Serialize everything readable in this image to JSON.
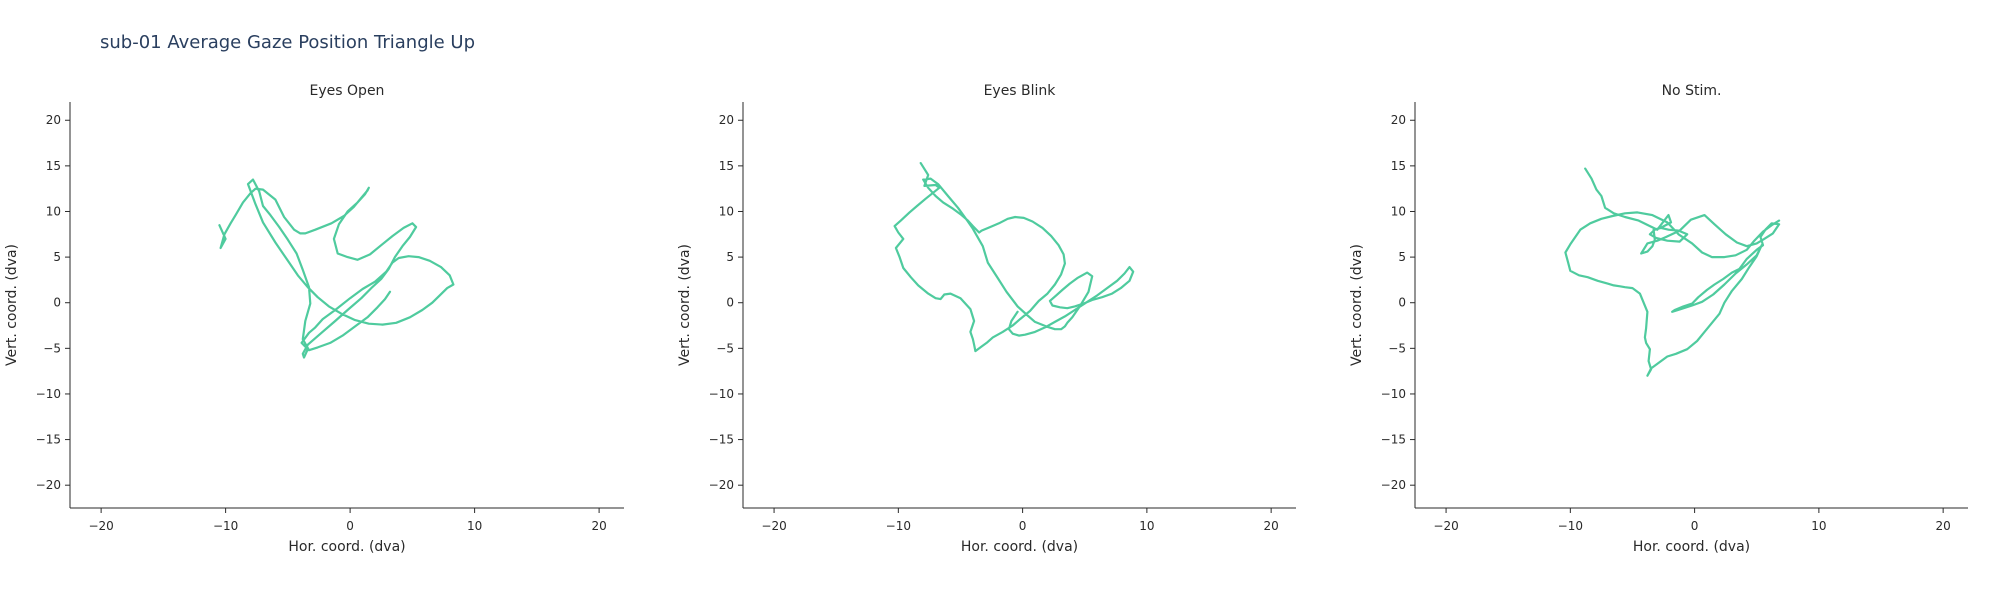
{
  "title": "sub-01 Average Gaze Position Triangle Up",
  "trace_color": "#4fcb9e",
  "chart_data": [
    {
      "type": "line",
      "title": "Eyes Open",
      "xlabel": "Hor. coord. (dva)",
      "ylabel": "Vert. coord. (dva)",
      "xlim": [
        -22.5,
        22
      ],
      "ylim": [
        -22.5,
        22
      ],
      "xticks": [
        -20,
        -10,
        0,
        10,
        20
      ],
      "yticks": [
        20,
        15,
        10,
        5,
        0,
        -5,
        -10,
        -15,
        -20
      ],
      "xtick_labels": [
        "−20",
        "−10",
        "0",
        "10",
        "20"
      ],
      "ytick_labels": [
        "20",
        "15",
        "10",
        "5",
        "0",
        "−5",
        "−10",
        "−15",
        "−20"
      ],
      "grid": false,
      "series": [
        {
          "x": [
            -10.5,
            -10.0,
            -10.4,
            -10.1,
            -9.6,
            -9.2,
            -8.6,
            -8.0,
            -7.6,
            -7.0,
            -6.0,
            -5.3,
            -4.5,
            -4.0,
            -3.6,
            -2.8,
            -1.5,
            -0.5,
            0.3,
            0.9,
            1.4,
            1.5,
            1.2,
            0.6,
            -0.2,
            -0.9,
            -1.3,
            -1.0,
            -0.2,
            0.6,
            1.6,
            2.5,
            3.4,
            4.3,
            5.0,
            5.3,
            4.8,
            4.2,
            3.6,
            3.1,
            2.5,
            1.7,
            0.9,
            -0.2,
            -1.2,
            -2.3,
            -3.4,
            -3.8,
            -3.7,
            -3.4,
            -3.9,
            -3.3,
            -2.8,
            -2.2,
            -1.2,
            0.0,
            1.0,
            2.0,
            2.9,
            3.4,
            3.9,
            4.7,
            5.5,
            6.4,
            7.3,
            8.0,
            8.3,
            7.8,
            7.2,
            6.6,
            5.8,
            4.8,
            3.7,
            2.6,
            1.5,
            0.4,
            -0.7,
            -1.7,
            -2.6,
            -3.4,
            -4.2,
            -5.0,
            -6.0,
            -7.0,
            -7.6,
            -8.2,
            -7.8,
            -7.3,
            -7.0,
            -6.4,
            -5.7,
            -5.0,
            -4.3,
            -3.8,
            -3.3,
            -3.2,
            -3.6,
            -3.8,
            -3.3,
            -2.6,
            -1.6,
            -0.6,
            0.4,
            1.4,
            2.2,
            2.8,
            3.2
          ],
          "y": [
            8.5,
            7.0,
            6.0,
            7.5,
            8.7,
            9.6,
            11.0,
            12.0,
            12.5,
            12.4,
            11.3,
            9.4,
            8.0,
            7.6,
            7.6,
            8.0,
            8.7,
            9.5,
            10.5,
            11.5,
            12.3,
            12.6,
            11.9,
            11.0,
            10.0,
            8.6,
            7.0,
            5.4,
            5.0,
            4.7,
            5.3,
            6.3,
            7.3,
            8.2,
            8.7,
            8.3,
            7.2,
            6.2,
            5.0,
            3.7,
            2.6,
            1.6,
            0.5,
            -0.8,
            -2.0,
            -3.3,
            -4.6,
            -5.6,
            -6.0,
            -5.1,
            -4.4,
            -3.3,
            -2.7,
            -1.8,
            -0.8,
            0.5,
            1.5,
            2.3,
            3.4,
            4.4,
            4.9,
            5.1,
            5.0,
            4.6,
            3.9,
            3.0,
            2.0,
            1.6,
            0.8,
            0.0,
            -0.8,
            -1.6,
            -2.2,
            -2.4,
            -2.3,
            -1.9,
            -1.2,
            -0.4,
            0.6,
            1.7,
            3.0,
            4.6,
            6.6,
            8.8,
            10.8,
            13.0,
            13.5,
            12.2,
            10.6,
            9.6,
            8.3,
            6.9,
            5.4,
            3.6,
            1.7,
            -0.1,
            -2.0,
            -4.0,
            -5.2,
            -4.9,
            -4.4,
            -3.6,
            -2.6,
            -1.6,
            -0.5,
            0.4,
            1.2
          ]
        }
      ]
    },
    {
      "type": "line",
      "title": "Eyes Blink",
      "xlabel": "Hor. coord. (dva)",
      "ylabel": "Vert. coord. (dva)",
      "xlim": [
        -22.5,
        22
      ],
      "ylim": [
        -22.5,
        22
      ],
      "xticks": [
        -20,
        -10,
        0,
        10,
        20
      ],
      "yticks": [
        20,
        15,
        10,
        5,
        0,
        -5,
        -10,
        -15,
        -20
      ],
      "xtick_labels": [
        "−20",
        "−10",
        "0",
        "10",
        "20"
      ],
      "ytick_labels": [
        "20",
        "15",
        "10",
        "5",
        "0",
        "−5",
        "−10",
        "−15",
        "−20"
      ],
      "grid": false,
      "series": [
        {
          "x": [
            -8.2,
            -7.6,
            -7.9,
            -7.0,
            -6.7,
            -7.8,
            -8.5,
            -9.1,
            -9.8,
            -10.3,
            -10.0,
            -9.6,
            -10.2,
            -9.9,
            -9.6,
            -9.0,
            -8.4,
            -7.6,
            -7.0,
            -6.6,
            -6.3,
            -5.8,
            -5.0,
            -4.2,
            -3.9,
            -4.2,
            -4.0,
            -3.9,
            -3.8,
            -3.6,
            -3.3,
            -2.9,
            -2.4,
            -1.6,
            -0.8,
            -0.2,
            0.6,
            1.3,
            2.0,
            2.6,
            3.1,
            3.4,
            3.3,
            2.9,
            2.3,
            1.6,
            0.8,
            0.1,
            -0.6,
            -1.2,
            -1.9,
            -2.6,
            -3.3,
            -3.5,
            -4.0,
            -4.4,
            -5.0,
            -5.6,
            -6.4,
            -7.0,
            -7.6,
            -8.0,
            -7.4,
            -6.8,
            -6.0,
            -5.2,
            -4.4,
            -4.0,
            -3.2,
            -2.8,
            -2.0,
            -1.3,
            -0.4,
            0.4,
            1.0,
            1.9,
            2.6,
            3.1,
            3.4,
            3.6,
            4.0,
            4.6,
            5.3,
            5.6,
            5.2,
            4.4,
            3.8,
            3.2,
            2.7,
            2.2,
            2.4,
            3.0,
            3.6,
            4.2,
            4.9,
            5.6,
            6.4,
            7.2,
            7.9,
            8.6,
            8.9,
            8.6,
            8.2,
            7.6,
            6.8,
            6.0,
            5.1,
            4.2,
            3.4,
            2.6,
            1.8,
            1.0,
            0.2,
            -0.3,
            -0.8,
            -1.1,
            -0.9,
            -0.4
          ],
          "y": [
            15.3,
            14.0,
            12.8,
            12.9,
            12.6,
            11.4,
            10.6,
            9.9,
            9.0,
            8.4,
            7.7,
            7.0,
            6.0,
            5.0,
            3.8,
            2.8,
            1.9,
            1.0,
            0.5,
            0.4,
            0.9,
            1.0,
            0.5,
            -0.7,
            -2.0,
            -3.2,
            -4.0,
            -4.6,
            -5.3,
            -5.1,
            -4.8,
            -4.4,
            -3.8,
            -3.2,
            -2.5,
            -1.8,
            -0.9,
            0.2,
            1.0,
            2.0,
            3.1,
            4.3,
            5.3,
            6.3,
            7.3,
            8.2,
            8.9,
            9.3,
            9.4,
            9.2,
            8.7,
            8.3,
            7.9,
            7.7,
            8.4,
            9.0,
            9.7,
            10.3,
            11.0,
            11.7,
            12.6,
            13.5,
            13.6,
            13.0,
            11.7,
            10.4,
            8.9,
            8.1,
            6.2,
            4.4,
            2.7,
            1.2,
            -0.4,
            -1.4,
            -2.1,
            -2.6,
            -2.9,
            -2.9,
            -2.6,
            -2.2,
            -1.6,
            -0.4,
            1.2,
            2.9,
            3.3,
            2.7,
            2.1,
            1.4,
            0.8,
            0.2,
            -0.3,
            -0.5,
            -0.6,
            -0.4,
            -0.1,
            0.3,
            0.6,
            1.0,
            1.6,
            2.4,
            3.4,
            3.9,
            3.2,
            2.4,
            1.6,
            0.8,
            0.0,
            -0.8,
            -1.5,
            -2.1,
            -2.7,
            -3.2,
            -3.5,
            -3.6,
            -3.4,
            -2.9,
            -2.0,
            -1.0
          ]
        }
      ]
    },
    {
      "type": "line",
      "title": "No Stim.",
      "xlabel": "Hor. coord. (dva)",
      "ylabel": "Vert. coord. (dva)",
      "xlim": [
        -22.5,
        22
      ],
      "ylim": [
        -22.5,
        22
      ],
      "xticks": [
        -20,
        -10,
        0,
        10,
        20
      ],
      "yticks": [
        20,
        15,
        10,
        5,
        0,
        -5,
        -10,
        -15,
        -20
      ],
      "xtick_labels": [
        "−20",
        "−10",
        "0",
        "10",
        "20"
      ],
      "ytick_labels": [
        "20",
        "15",
        "10",
        "5",
        "0",
        "−5",
        "−10",
        "−15",
        "−20"
      ],
      "grid": false,
      "series": [
        {
          "x": [
            -8.8,
            -8.3,
            -7.9,
            -7.5,
            -7.2,
            -6.5,
            -5.6,
            -4.5,
            -3.6,
            -3.0,
            -2.5,
            -2.1,
            -1.9,
            -2.6,
            -3.2,
            -3.6,
            -3.1,
            -2.2,
            -1.2,
            -0.6,
            -1.3,
            -2.1,
            -2.7,
            -3.3,
            -3.2,
            -3.4,
            -3.8,
            -4.3,
            -3.8,
            -3.0,
            -2.3,
            -1.2,
            -0.3,
            0.8,
            1.6,
            2.5,
            3.4,
            4.2,
            5.0,
            5.6,
            6.3,
            6.8,
            6.2,
            5.7,
            5.3,
            5.5,
            5.0,
            4.2,
            3.6,
            3.0,
            2.3,
            1.6,
            1.0,
            0.3,
            -0.2,
            -0.9,
            -1.6,
            -1.8,
            -1.1,
            -0.2,
            0.6,
            1.5,
            2.4,
            3.3,
            4.2,
            5.0,
            5.4,
            5.0,
            4.4,
            3.8,
            3.0,
            2.4,
            2.0,
            1.4,
            0.8,
            0.2,
            -0.6,
            -1.5,
            -2.2,
            -2.8,
            -3.5,
            -3.8,
            -3.5,
            -3.7,
            -3.6,
            -3.9,
            -4.0,
            -3.9,
            -3.8,
            -4.4,
            -5.0,
            -5.6,
            -6.0,
            -6.5,
            -7.0,
            -7.8,
            -8.6,
            -9.3,
            -10.0,
            -10.2,
            -10.4,
            -10.0,
            -9.6,
            -9.2,
            -8.4,
            -7.5,
            -6.6,
            -5.6,
            -4.6,
            -3.4,
            -2.2,
            -1.3,
            -0.2,
            0.6,
            1.4,
            2.4,
            3.3,
            4.2,
            4.8,
            5.5,
            6.2,
            6.8
          ],
          "y": [
            14.7,
            13.6,
            12.4,
            11.7,
            10.4,
            9.8,
            9.4,
            9.0,
            8.4,
            8.0,
            8.9,
            9.6,
            8.8,
            8.3,
            8.0,
            7.5,
            7.1,
            6.8,
            6.7,
            7.5,
            7.9,
            8.0,
            8.2,
            8.0,
            6.9,
            6.2,
            5.6,
            5.4,
            6.5,
            6.8,
            7.2,
            7.9,
            9.1,
            9.6,
            8.6,
            7.5,
            6.6,
            6.2,
            6.5,
            7.0,
            7.6,
            8.6,
            8.7,
            8.0,
            7.2,
            6.3,
            5.8,
            4.8,
            3.7,
            3.3,
            2.6,
            2.0,
            1.4,
            0.6,
            -0.1,
            -0.4,
            -0.8,
            -1.0,
            -0.7,
            -0.3,
            0.1,
            0.9,
            2.0,
            3.2,
            4.2,
            5.2,
            6.3,
            5.1,
            3.9,
            2.6,
            1.3,
            0.0,
            -1.2,
            -2.2,
            -3.2,
            -4.2,
            -5.1,
            -5.6,
            -5.9,
            -6.5,
            -7.2,
            -8.0,
            -7.3,
            -6.4,
            -5.1,
            -4.4,
            -3.8,
            -2.8,
            -1.0,
            1.0,
            1.6,
            1.7,
            1.8,
            1.9,
            2.1,
            2.4,
            2.8,
            3.0,
            3.5,
            4.5,
            5.5,
            6.4,
            7.2,
            8.0,
            8.7,
            9.2,
            9.5,
            9.8,
            9.9,
            9.6,
            8.8,
            7.5,
            6.5,
            5.5,
            5.0,
            5.0,
            5.2,
            5.8,
            6.8,
            7.8,
            8.5,
            9.0
          ]
        }
      ]
    }
  ]
}
